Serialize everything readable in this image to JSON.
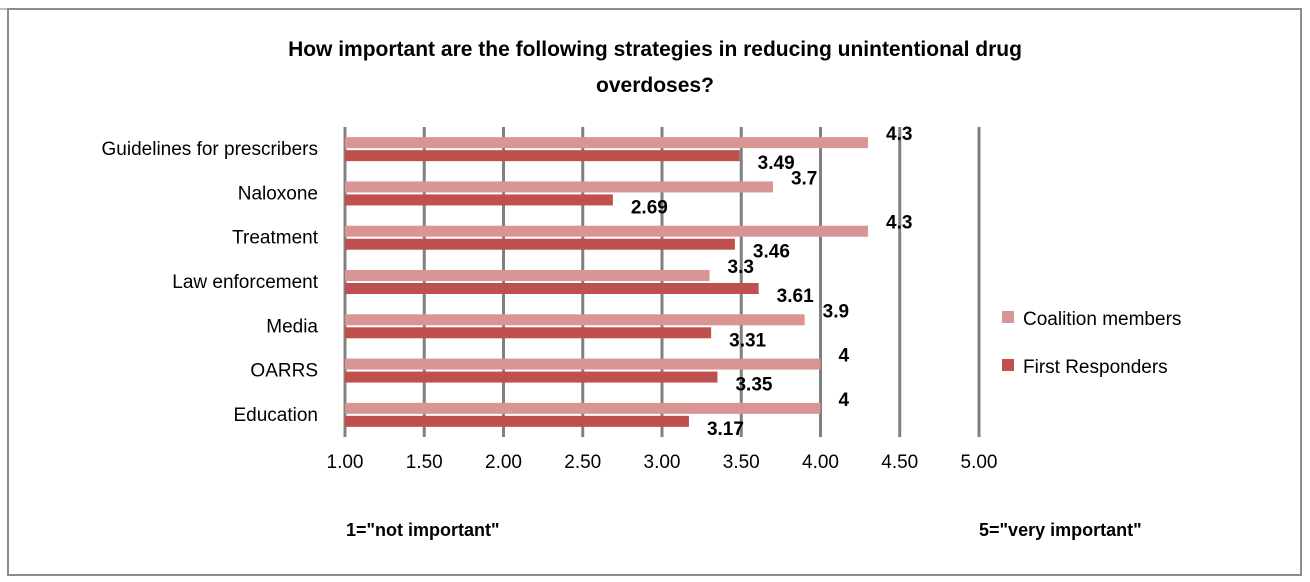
{
  "chart_data": {
    "type": "bar",
    "orientation": "horizontal",
    "title_line1": "How important are  the following strategies in reducing unintentional drug",
    "title_line2": "overdoses?",
    "categories": [
      "Guidelines for prescribers",
      "Naloxone",
      "Treatment",
      "Law enforcement",
      "Media",
      "OARRS",
      "Education"
    ],
    "series": [
      {
        "name": "Coalition members",
        "color": "#d99594",
        "values": [
          4.3,
          3.7,
          4.3,
          3.3,
          3.9,
          4,
          4
        ],
        "labels": [
          "4.3",
          "3.7",
          "4.3",
          "3.3",
          "3.9",
          "4",
          "4"
        ]
      },
      {
        "name": "First Responders",
        "color": "#c0504d",
        "values": [
          3.49,
          2.69,
          3.46,
          3.61,
          3.31,
          3.35,
          3.17
        ],
        "labels": [
          "3.49",
          "2.69",
          "3.46",
          "3.61",
          "3.31",
          "3.35",
          "3.17"
        ]
      }
    ],
    "xlim": [
      1.0,
      5.0
    ],
    "xticks": [
      1.0,
      1.5,
      2.0,
      2.5,
      3.0,
      3.5,
      4.0,
      4.5,
      5.0
    ],
    "xtick_labels": [
      "1.00",
      "1.50",
      "2.00",
      "2.50",
      "3.00",
      "3.50",
      "4.00",
      "4.50",
      "5.00"
    ],
    "annotation_left": "1=\"not important\"",
    "annotation_right": "5=\"very important\"",
    "grid": true,
    "legend_position": "right"
  }
}
